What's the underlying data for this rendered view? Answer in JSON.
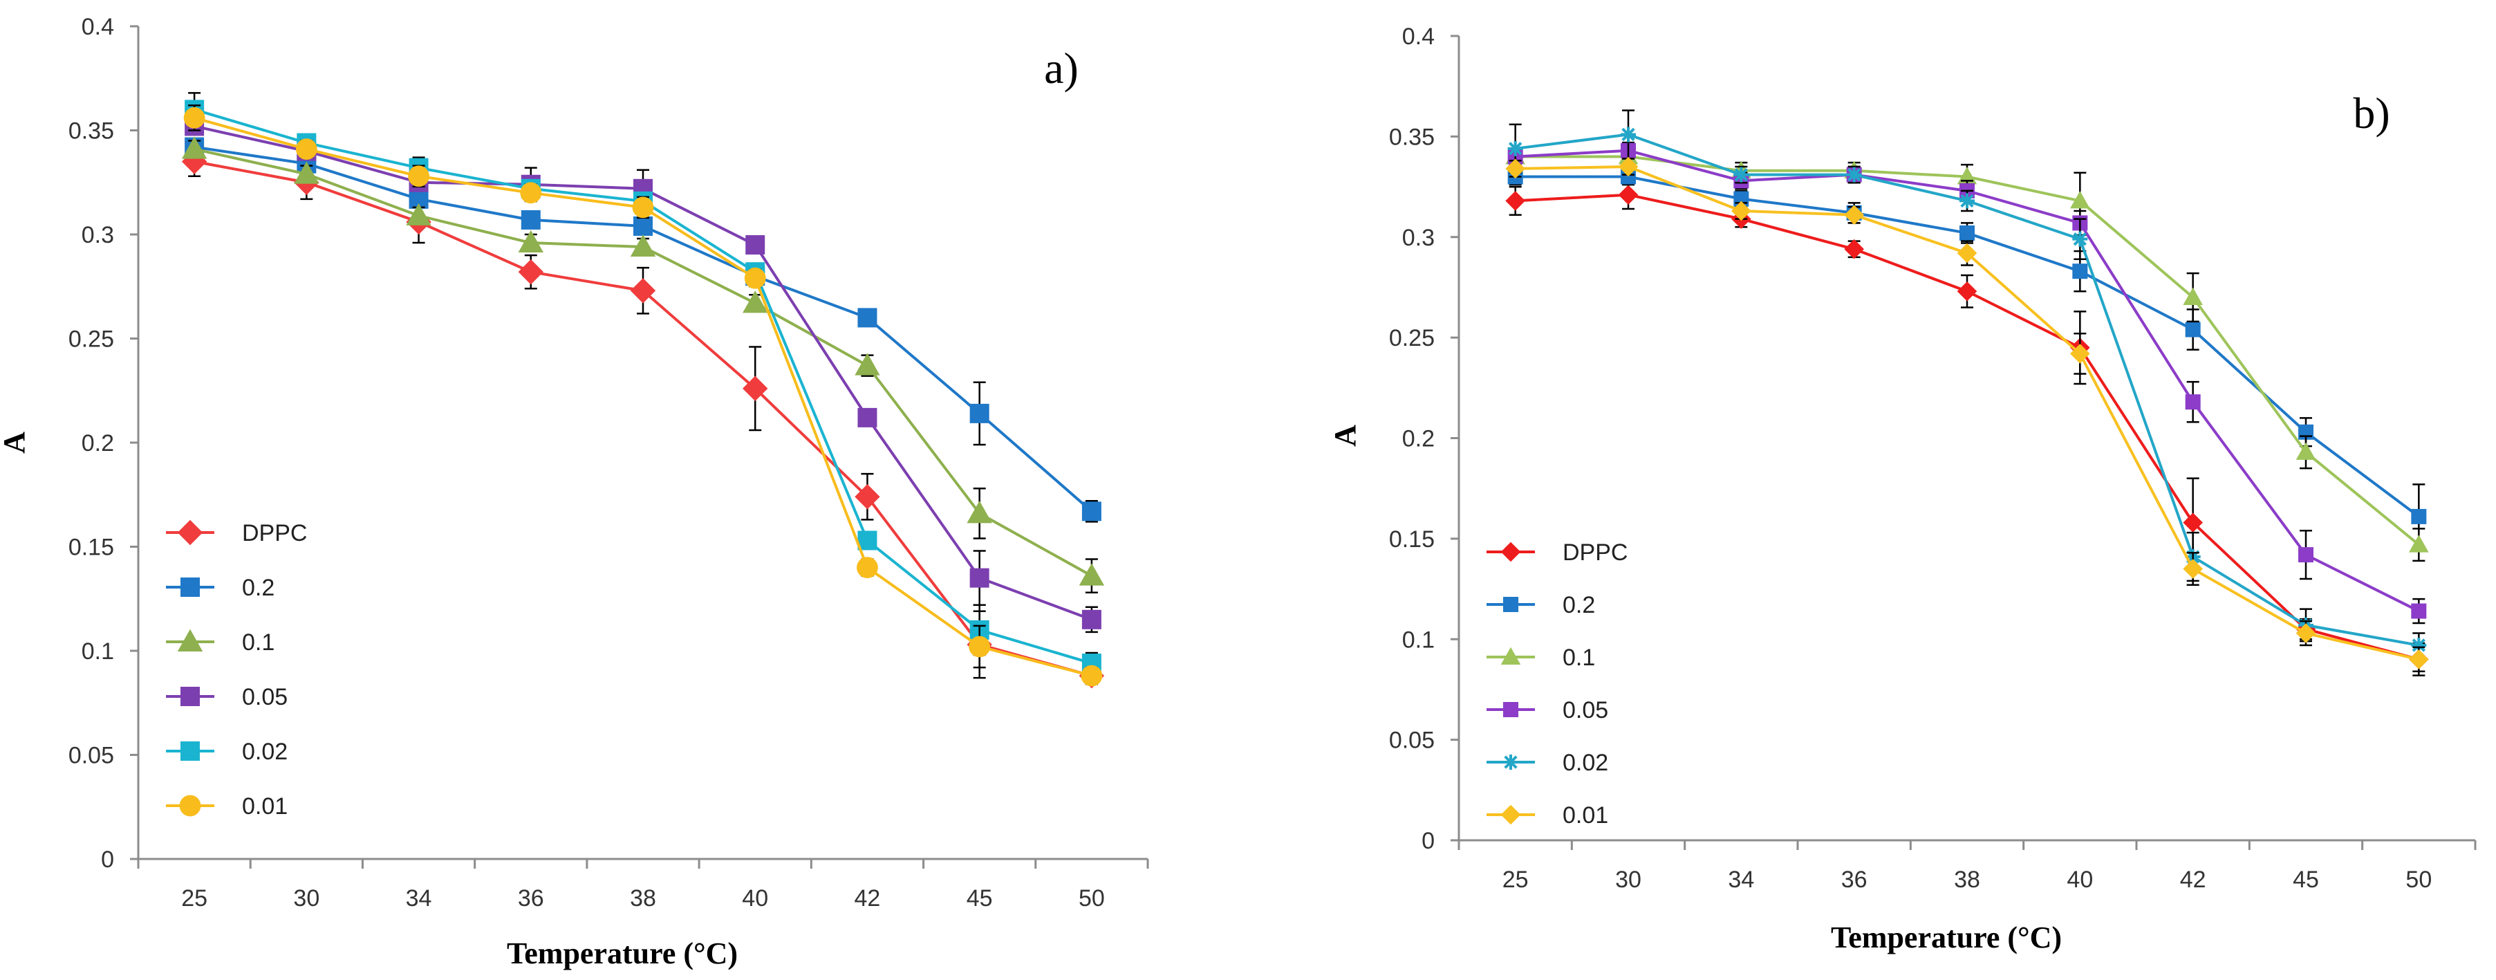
{
  "figure": {
    "panels": [
      {
        "id": "a",
        "panel_label": "a)",
        "xlabel": "Temperature (°C)",
        "ylabel": "A",
        "ylim": [
          0,
          0.4
        ],
        "ytick_step": 0.05,
        "ytick_labels": [
          "0",
          "0.05",
          "0.1",
          "0.15",
          "0.2",
          "0.25",
          "0.3",
          "0.35",
          "0.4"
        ],
        "categories": [
          "25",
          "30",
          "34",
          "36",
          "38",
          "40",
          "42",
          "45",
          "50"
        ],
        "series": [
          {
            "name": "DPPC",
            "color": "#f03c3c",
            "marker": "diamond",
            "values": [
              0.335,
              0.325,
              0.306,
              0.282,
              0.273,
              0.226,
              0.174,
              0.103,
              0.088
            ],
            "errors": [
              0.007,
              0.008,
              0.01,
              0.008,
              0.011,
              0.02,
              0.011,
              0.016,
              0.004
            ]
          },
          {
            "name": "0.2",
            "color": "#1f78c8",
            "marker": "square",
            "values": [
              0.342,
              0.334,
              0.317,
              0.307,
              0.304,
              0.28,
              0.26,
              0.214,
              0.167
            ],
            "errors": [
              0.004,
              0.004,
              0.004,
              0.004,
              0.003,
              0.003,
              0.003,
              0.015,
              0.005
            ]
          },
          {
            "name": "0.1",
            "color": "#8eb04e",
            "marker": "triangle",
            "values": [
              0.341,
              0.329,
              0.309,
              0.296,
              0.294,
              0.267,
              0.237,
              0.166,
              0.136
            ],
            "errors": [
              0.004,
              0.004,
              0.004,
              0.004,
              0.004,
              0.004,
              0.005,
              0.012,
              0.008
            ]
          },
          {
            "name": "0.05",
            "color": "#7c3fb0",
            "marker": "square",
            "values": [
              0.352,
              0.34,
              0.325,
              0.324,
              0.322,
              0.295,
              0.212,
              0.135,
              0.115
            ],
            "errors": [
              0.004,
              0.004,
              0.004,
              0.008,
              0.009,
              0.004,
              0.004,
              0.013,
              0.006
            ]
          },
          {
            "name": "0.02",
            "color": "#1ab4d0",
            "marker": "square",
            "values": [
              0.36,
              0.344,
              0.332,
              0.322,
              0.316,
              0.282,
              0.153,
              0.11,
              0.094
            ],
            "errors": [
              0.008,
              0.004,
              0.005,
              0.004,
              0.004,
              0.004,
              0.004,
              0.012,
              0.005
            ]
          },
          {
            "name": "0.01",
            "color": "#f8bc1c",
            "marker": "circle",
            "values": [
              0.356,
              0.341,
              0.328,
              0.32,
              0.313,
              0.279,
              0.14,
              0.102,
              0.088
            ],
            "errors": [
              0.006,
              0.004,
              0.005,
              0.004,
              0.005,
              0.004,
              0.004,
              0.01,
              0.004
            ]
          }
        ]
      },
      {
        "id": "b",
        "panel_label": "b)",
        "xlabel": "Temperature (°C)",
        "ylabel": "A",
        "ylim": [
          0,
          0.4
        ],
        "ytick_step": 0.05,
        "ytick_labels": [
          "0",
          "0.05",
          "0.1",
          "0.15",
          "0.2",
          "0.25",
          "0.3",
          "0.35",
          "0.4"
        ],
        "categories": [
          "25",
          "30",
          "34",
          "36",
          "38",
          "40",
          "42",
          "45",
          "50"
        ],
        "series": [
          {
            "name": "DPPC",
            "color": "#ee1c1c",
            "marker": "diamond",
            "values": [
              0.318,
              0.321,
              0.309,
              0.294,
              0.273,
              0.245,
              0.158,
              0.105,
              0.09
            ],
            "errors": [
              0.007,
              0.007,
              0.004,
              0.004,
              0.008,
              0.018,
              0.022,
              0.005,
              0.008
            ]
          },
          {
            "name": "0.2",
            "color": "#1f78c8",
            "marker": "square",
            "values": [
              0.33,
              0.33,
              0.319,
              0.312,
              0.302,
              0.283,
              0.254,
              0.203,
              0.161
            ],
            "errors": [
              0.004,
              0.004,
              0.004,
              0.005,
              0.005,
              0.01,
              0.01,
              0.007,
              0.016
            ]
          },
          {
            "name": "0.1",
            "color": "#9ec45a",
            "marker": "triangle",
            "values": [
              0.34,
              0.34,
              0.333,
              0.333,
              0.33,
              0.318,
              0.27,
              0.193,
              0.147
            ],
            "errors": [
              0.004,
              0.004,
              0.004,
              0.004,
              0.006,
              0.014,
              0.012,
              0.008,
              0.008
            ]
          },
          {
            "name": "0.05",
            "color": "#8c3cc8",
            "marker": "square",
            "values": [
              0.34,
              0.343,
              0.328,
              0.331,
              0.323,
              0.307,
              0.218,
              0.142,
              0.114
            ],
            "errors": [
              0.004,
              0.004,
              0.004,
              0.004,
              0.005,
              0.006,
              0.01,
              0.012,
              0.006
            ]
          },
          {
            "name": "0.02",
            "color": "#23a6c8",
            "marker": "star",
            "values": [
              0.344,
              0.351,
              0.331,
              0.331,
              0.318,
              0.299,
              0.141,
              0.107,
              0.097
            ],
            "errors": [
              0.012,
              0.012,
              0.004,
              0.004,
              0.005,
              0.01,
              0.012,
              0.008,
              0.006
            ]
          },
          {
            "name": "0.01",
            "color": "#f8c020",
            "marker": "diamond",
            "values": [
              0.334,
              0.335,
              0.313,
              0.311,
              0.292,
              0.242,
              0.135,
              0.103,
              0.09
            ],
            "errors": [
              0.004,
              0.004,
              0.004,
              0.004,
              0.006,
              0.01,
              0.008,
              0.006,
              0.006
            ]
          }
        ]
      }
    ]
  },
  "chart_data": [
    {
      "type": "line",
      "title": "a)",
      "xlabel": "Temperature (°C)",
      "ylabel": "A",
      "ylim": [
        0,
        0.4
      ],
      "categories": [
        "25",
        "30",
        "34",
        "36",
        "38",
        "40",
        "42",
        "45",
        "50"
      ],
      "series": [
        {
          "name": "DPPC",
          "values": [
            0.335,
            0.325,
            0.306,
            0.282,
            0.273,
            0.226,
            0.174,
            0.103,
            0.088
          ]
        },
        {
          "name": "0.2",
          "values": [
            0.342,
            0.334,
            0.317,
            0.307,
            0.304,
            0.28,
            0.26,
            0.214,
            0.167
          ]
        },
        {
          "name": "0.1",
          "values": [
            0.341,
            0.329,
            0.309,
            0.296,
            0.294,
            0.267,
            0.237,
            0.166,
            0.136
          ]
        },
        {
          "name": "0.05",
          "values": [
            0.352,
            0.34,
            0.325,
            0.324,
            0.322,
            0.295,
            0.212,
            0.135,
            0.115
          ]
        },
        {
          "name": "0.02",
          "values": [
            0.36,
            0.344,
            0.332,
            0.322,
            0.316,
            0.282,
            0.153,
            0.11,
            0.094
          ]
        },
        {
          "name": "0.01",
          "values": [
            0.356,
            0.341,
            0.328,
            0.32,
            0.313,
            0.279,
            0.14,
            0.102,
            0.088
          ]
        }
      ]
    },
    {
      "type": "line",
      "title": "b)",
      "xlabel": "Temperature (°C)",
      "ylabel": "A",
      "ylim": [
        0,
        0.4
      ],
      "categories": [
        "25",
        "30",
        "34",
        "36",
        "38",
        "40",
        "42",
        "45",
        "50"
      ],
      "series": [
        {
          "name": "DPPC",
          "values": [
            0.318,
            0.321,
            0.309,
            0.294,
            0.273,
            0.245,
            0.158,
            0.105,
            0.09
          ]
        },
        {
          "name": "0.2",
          "values": [
            0.33,
            0.33,
            0.319,
            0.312,
            0.302,
            0.283,
            0.254,
            0.203,
            0.161
          ]
        },
        {
          "name": "0.1",
          "values": [
            0.34,
            0.34,
            0.333,
            0.333,
            0.33,
            0.318,
            0.27,
            0.193,
            0.147
          ]
        },
        {
          "name": "0.05",
          "values": [
            0.34,
            0.343,
            0.328,
            0.331,
            0.323,
            0.307,
            0.218,
            0.142,
            0.114
          ]
        },
        {
          "name": "0.02",
          "values": [
            0.344,
            0.351,
            0.331,
            0.331,
            0.318,
            0.299,
            0.141,
            0.107,
            0.097
          ]
        },
        {
          "name": "0.01",
          "values": [
            0.334,
            0.335,
            0.313,
            0.311,
            0.292,
            0.242,
            0.135,
            0.103,
            0.09
          ]
        }
      ]
    }
  ]
}
